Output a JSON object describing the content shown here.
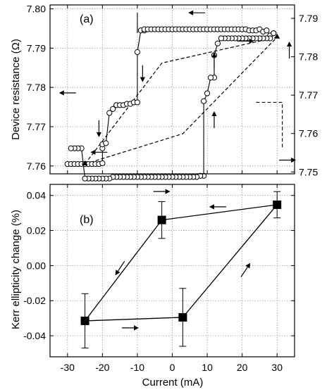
{
  "figure": {
    "colors": {
      "ink": "#000000",
      "grid": "#9a9a9a",
      "marker_fill": "#ffffff",
      "background": "#ffffff"
    }
  },
  "chart_data": [
    {
      "id": "a",
      "type": "scatter",
      "panel_label": "(a)",
      "ylabel": "Device resistance (Ω)",
      "xlim": [
        -35,
        35
      ],
      "ylim": [
        7.758,
        7.801
      ],
      "y_ticks": [
        "7.76",
        "7.77",
        "7.78",
        "7.79",
        "7.80"
      ],
      "y2lim": [
        7.7495,
        7.7935
      ],
      "y2_ticks": [
        "7.75",
        "7.76",
        "7.77",
        "7.78",
        "7.79"
      ],
      "grid": true,
      "series": [
        {
          "style": "circles-solid-line",
          "axis": "left",
          "x": [
            -30,
            -29,
            -28,
            -27,
            -26,
            -25,
            -24,
            -23,
            -22,
            -21,
            -20,
            -20,
            -20,
            -19,
            -18,
            -17,
            -16,
            -15,
            -14,
            -13,
            -12,
            -11,
            -10,
            -10,
            -9,
            -8,
            -8,
            -7,
            -6,
            -5,
            -4,
            -3,
            -2,
            -1,
            0,
            1,
            2,
            3,
            4,
            5,
            6,
            7,
            8,
            9,
            10,
            11,
            12,
            13,
            14,
            15,
            16,
            17,
            18,
            19,
            20,
            21,
            22,
            23,
            24,
            25,
            26,
            27,
            28,
            29
          ],
          "y": [
            7.7605,
            7.7605,
            7.7605,
            7.7605,
            7.7605,
            7.7605,
            7.7605,
            7.7605,
            7.7605,
            7.7605,
            7.7607,
            7.7645,
            7.7655,
            7.7658,
            7.7735,
            7.7745,
            7.7755,
            7.7755,
            7.7755,
            7.7758,
            7.7758,
            7.7762,
            7.7762,
            7.789,
            7.7945,
            7.7945,
            7.7948,
            7.7948,
            7.7948,
            7.7948,
            7.7948,
            7.7948,
            7.7948,
            7.7948,
            7.7948,
            7.7948,
            7.7948,
            7.7948,
            7.7948,
            7.7948,
            7.7948,
            7.7948,
            7.7948,
            7.7948,
            7.7948,
            7.7948,
            7.7948,
            7.7948,
            7.7948,
            7.7948,
            7.7948,
            7.7948,
            7.7948,
            7.7948,
            7.7948,
            7.7948,
            7.7945,
            7.7945,
            7.7945,
            7.7948,
            7.7942,
            7.7945,
            7.7932,
            7.7938
          ]
        },
        {
          "style": "circles-solid-line",
          "axis": "left",
          "x": [
            29,
            28,
            27,
            26,
            25,
            24,
            23,
            22,
            21,
            20,
            19,
            18,
            17,
            16,
            15,
            14,
            13,
            12,
            12,
            11,
            10,
            9,
            9,
            8,
            7,
            6,
            5,
            4,
            3,
            2,
            1,
            0,
            -1,
            -2,
            -3,
            -4,
            -5,
            -6,
            -7,
            -8,
            -9,
            -10,
            -11,
            -12,
            -13,
            -14,
            -15,
            -16,
            -17,
            -18,
            -19,
            -20,
            -21,
            -22,
            -23,
            -24,
            -25,
            -26,
            -27,
            -28,
            -29
          ],
          "y": [
            7.7938,
            7.7925,
            7.7925,
            7.7925,
            7.7925,
            7.7925,
            7.7925,
            7.7925,
            7.7925,
            7.7925,
            7.7925,
            7.7925,
            7.7925,
            7.7925,
            7.7925,
            7.7925,
            7.7912,
            7.7882,
            7.7825,
            7.7825,
            7.7785,
            7.7765,
            7.7575,
            7.7575,
            7.7572,
            7.7572,
            7.7572,
            7.7572,
            7.7572,
            7.7572,
            7.7572,
            7.7572,
            7.7572,
            7.7572,
            7.7572,
            7.7572,
            7.7572,
            7.7572,
            7.7572,
            7.7572,
            7.7572,
            7.7572,
            7.7572,
            7.7572,
            7.7572,
            7.7572,
            7.7572,
            7.7572,
            7.7572,
            7.7568,
            7.7568,
            7.7568,
            7.7568,
            7.7568,
            7.7568,
            7.7568,
            7.7568,
            7.7645,
            7.7645,
            7.7645,
            7.7645
          ]
        },
        {
          "style": "dashed-line",
          "axis": "left",
          "x": [
            -25,
            -3,
            30,
            3,
            -25
          ],
          "y": [
            7.7605,
            7.7862,
            7.7928,
            7.7682,
            7.7605
          ]
        }
      ],
      "annotations": [
        {
          "type": "arrow",
          "direction": "left",
          "side": "left-axis",
          "x": 7,
          "y": 7.799
        },
        {
          "type": "arrow",
          "direction": "down",
          "x": -8.5,
          "y": 7.7835
        },
        {
          "type": "arrow",
          "direction": "down",
          "x": -21,
          "y": 7.7695
        },
        {
          "type": "arrow",
          "direction": "left",
          "x": -21,
          "y": 7.7635
        },
        {
          "type": "arrow",
          "direction": "up",
          "x": 12,
          "y": 7.7868
        },
        {
          "type": "arrow",
          "direction": "up",
          "x": 12,
          "y": 7.7718
        },
        {
          "type": "arrow",
          "direction": "right",
          "x": -3,
          "y": 7.7535
        },
        {
          "type": "arrow",
          "direction": "right",
          "x": 21,
          "y": 7.7918
        },
        {
          "type": "arrow",
          "direction": "left",
          "side": "left-axis",
          "x": -30,
          "y": 7.7786
        },
        {
          "type": "arrow",
          "direction": "right",
          "side": "right-axis",
          "x": 33,
          "y": 7.7615
        },
        {
          "type": "arrow",
          "direction": "up",
          "side": "right-axis",
          "x": 33.5,
          "y": 7.7895
        }
      ]
    },
    {
      "id": "b",
      "type": "scatter",
      "panel_label": "(b)",
      "xlabel": "Current (mA)",
      "ylabel": "Kerr ellipticity change (%)",
      "xlim": [
        -35,
        35
      ],
      "ylim": [
        -0.052,
        0.0463
      ],
      "x_ticks": [
        "-30",
        "-20",
        "-10",
        "0",
        "10",
        "20",
        "30"
      ],
      "y_ticks": [
        "-0.04",
        "-0.02",
        "0.00",
        "0.02",
        "0.04"
      ],
      "grid": true,
      "series": [
        {
          "style": "squares-line-errorbars",
          "x": [
            -25,
            -3,
            30,
            3,
            -25
          ],
          "y": [
            -0.0315,
            0.026,
            0.0347,
            -0.0295,
            -0.0315
          ],
          "error": [
            0.0155,
            0.0105,
            0.0075,
            0.0165,
            0.0155
          ]
        }
      ],
      "annotations": [
        {
          "type": "arrow",
          "direction": "left",
          "x": 13,
          "y": 0.0335
        },
        {
          "type": "arrow",
          "direction": "down-left",
          "x": -15,
          "y": -0.0015
        },
        {
          "type": "arrow",
          "direction": "right",
          "x": -12,
          "y": -0.0355
        },
        {
          "type": "arrow",
          "direction": "up-right",
          "x": 21,
          "y": -0.0025
        }
      ]
    }
  ]
}
